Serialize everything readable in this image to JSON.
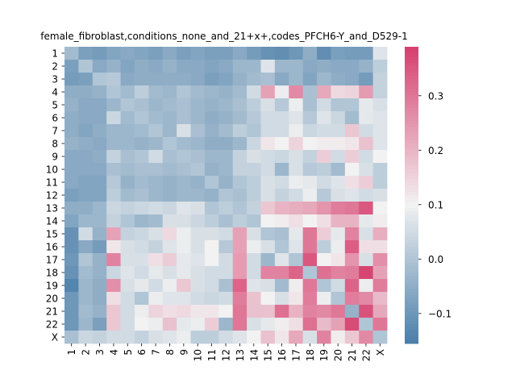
{
  "chart_data": {
    "type": "heatmap",
    "title": "female_fibroblast,conditions_none_and_21+x+,codes_PFCH6-Y_and_D529-1",
    "xlabel": "",
    "ylabel": "",
    "row_labels": [
      "1",
      "2",
      "3",
      "4",
      "5",
      "6",
      "7",
      "8",
      "9",
      "10",
      "11",
      "12",
      "13",
      "14",
      "15",
      "16",
      "17",
      "18",
      "19",
      "20",
      "21",
      "22",
      "X"
    ],
    "col_labels": [
      "1",
      "2",
      "3",
      "4",
      "5",
      "6",
      "7",
      "8",
      "9",
      "10",
      "11",
      "12",
      "13",
      "14",
      "15",
      "16",
      "17",
      "18",
      "19",
      "20",
      "21",
      "22",
      "X"
    ],
    "colorbar": {
      "vmin": -0.155,
      "vmax": 0.39,
      "ticks": [
        -0.1,
        0.0,
        0.1,
        0.2,
        0.3
      ],
      "tick_labels": [
        "−0.1",
        "0.0",
        "0.1",
        "0.2",
        "0.3"
      ],
      "colors": {
        "low": "#4a7ea8",
        "mid": "#f2f2f2",
        "high": "#d63f6e"
      }
    },
    "values": [
      [
        -0.02,
        -0.08,
        -0.09,
        -0.07,
        -0.06,
        -0.07,
        -0.08,
        -0.06,
        -0.08,
        -0.07,
        -0.08,
        -0.08,
        -0.06,
        -0.09,
        -0.11,
        -0.12,
        -0.1,
        -0.05,
        -0.12,
        -0.08,
        -0.09,
        -0.09,
        0.07
      ],
      [
        -0.08,
        0.0,
        -0.06,
        -0.04,
        -0.07,
        -0.05,
        -0.06,
        -0.04,
        -0.06,
        -0.06,
        -0.07,
        -0.06,
        -0.03,
        -0.03,
        0.07,
        -0.03,
        -0.03,
        -0.06,
        -0.05,
        -0.06,
        -0.06,
        -0.04,
        0.02
      ],
      [
        -0.09,
        -0.08,
        0.0,
        0.01,
        -0.06,
        -0.05,
        -0.05,
        -0.05,
        -0.05,
        -0.06,
        -0.08,
        -0.07,
        -0.04,
        -0.02,
        -0.01,
        -0.06,
        -0.03,
        -0.07,
        -0.03,
        -0.05,
        -0.06,
        -0.09,
        0.03
      ],
      [
        -0.05,
        -0.05,
        -0.04,
        0.0,
        -0.02,
        0.02,
        -0.02,
        -0.03,
        0.0,
        -0.02,
        -0.03,
        -0.04,
        -0.02,
        0.05,
        0.23,
        0.09,
        0.27,
        -0.01,
        0.22,
        0.14,
        0.15,
        0.24,
        0.03
      ],
      [
        -0.04,
        -0.06,
        -0.06,
        -0.03,
        0.0,
        -0.01,
        -0.03,
        -0.02,
        -0.01,
        -0.03,
        -0.04,
        -0.03,
        -0.01,
        0.02,
        0.06,
        0.01,
        0.09,
        -0.01,
        0.05,
        0.0,
        0.0,
        0.08,
        0.06
      ],
      [
        -0.05,
        -0.06,
        -0.06,
        0.04,
        -0.02,
        0.0,
        -0.02,
        -0.03,
        -0.01,
        -0.03,
        -0.05,
        -0.04,
        -0.02,
        0.01,
        0.05,
        0.05,
        0.07,
        0.01,
        0.07,
        0.04,
        -0.02,
        0.08,
        0.07
      ],
      [
        -0.05,
        -0.07,
        -0.05,
        -0.03,
        -0.03,
        -0.02,
        0.0,
        -0.03,
        0.06,
        -0.01,
        -0.04,
        -0.02,
        0.02,
        0.0,
        0.05,
        0.05,
        0.09,
        0.04,
        0.05,
        0.05,
        0.17,
        0.05,
        0.07
      ],
      [
        -0.04,
        -0.05,
        -0.06,
        -0.03,
        -0.03,
        -0.04,
        -0.03,
        0.0,
        -0.02,
        -0.03,
        -0.05,
        -0.05,
        -0.03,
        0.04,
        0.12,
        0.1,
        0.15,
        0.1,
        0.11,
        0.11,
        0.12,
        0.18,
        0.07
      ],
      [
        -0.06,
        -0.06,
        -0.05,
        0.03,
        -0.01,
        0.0,
        0.05,
        -0.01,
        0.0,
        -0.01,
        -0.03,
        -0.03,
        0.03,
        0.06,
        0.05,
        0.04,
        0.06,
        0.03,
        0.16,
        0.05,
        0.16,
        0.05,
        0.1
      ],
      [
        -0.06,
        -0.06,
        -0.06,
        -0.01,
        -0.02,
        -0.01,
        -0.01,
        -0.02,
        -0.01,
        0.0,
        -0.04,
        -0.03,
        0.03,
        0.03,
        0.05,
        -0.03,
        0.06,
        0.01,
        0.02,
        -0.02,
        0.1,
        0.06,
        0.02
      ],
      [
        -0.06,
        -0.07,
        -0.07,
        0.01,
        -0.04,
        -0.02,
        -0.03,
        -0.04,
        -0.03,
        -0.04,
        0.0,
        -0.04,
        0.0,
        0.02,
        0.06,
        0.05,
        0.09,
        0.08,
        0.05,
        0.07,
        0.13,
        0.16,
        0.02
      ],
      [
        -0.08,
        -0.07,
        -0.07,
        0.02,
        -0.02,
        -0.01,
        -0.03,
        -0.04,
        -0.03,
        -0.03,
        -0.04,
        0.0,
        -0.01,
        0.02,
        0.06,
        0.03,
        0.05,
        0.09,
        0.01,
        0.06,
        0.07,
        0.05,
        0.06
      ],
      [
        -0.05,
        -0.05,
        -0.03,
        0.04,
        0.03,
        0.04,
        0.05,
        0.04,
        0.07,
        0.06,
        0.0,
        0.02,
        0.0,
        0.03,
        0.17,
        0.2,
        0.21,
        0.22,
        0.25,
        0.29,
        0.3,
        0.35,
        0.1
      ],
      [
        -0.07,
        -0.03,
        -0.03,
        0.03,
        0.0,
        -0.03,
        -0.02,
        0.06,
        0.06,
        0.04,
        0.02,
        -0.01,
        0.02,
        0.0,
        0.1,
        0.11,
        0.13,
        0.1,
        0.13,
        0.2,
        0.2,
        0.08,
        0.11
      ],
      [
        -0.11,
        0.05,
        -0.04,
        0.23,
        0.03,
        0.04,
        0.06,
        0.14,
        0.09,
        0.06,
        0.06,
        0.05,
        0.23,
        0.06,
        0.0,
        -0.01,
        0.08,
        0.3,
        0.16,
        0.08,
        0.28,
        0.06,
        0.21
      ],
      [
        -0.11,
        -0.06,
        -0.09,
        0.12,
        0.06,
        0.05,
        0.03,
        0.07,
        0.09,
        0.06,
        0.1,
        0.01,
        0.23,
        0.09,
        0.06,
        0.0,
        0.07,
        0.3,
        0.02,
        0.09,
        0.34,
        0.13,
        0.13
      ],
      [
        -0.1,
        0.0,
        -0.04,
        0.28,
        0.06,
        0.06,
        0.13,
        0.16,
        0.08,
        0.07,
        0.1,
        0.05,
        0.24,
        0.05,
        -0.03,
        0.07,
        0.0,
        0.35,
        0.1,
        0.12,
        0.25,
        0.06,
        0.26
      ],
      [
        -0.11,
        -0.02,
        -0.04,
        0.04,
        0.07,
        0.05,
        0.08,
        0.06,
        0.08,
        0.06,
        0.05,
        0.05,
        0.24,
        0.05,
        0.28,
        0.28,
        0.33,
        0.0,
        0.31,
        0.28,
        0.29,
        0.38,
        0.23
      ],
      [
        -0.14,
        -0.03,
        -0.05,
        0.26,
        0.06,
        0.08,
        0.05,
        0.09,
        0.17,
        0.06,
        0.05,
        -0.01,
        0.33,
        0.07,
        0.06,
        -0.02,
        0.11,
        0.3,
        0.0,
        0.05,
        0.33,
        0.09,
        0.29
      ],
      [
        -0.1,
        -0.03,
        -0.05,
        0.13,
        0.05,
        0.0,
        0.09,
        0.07,
        0.07,
        0.05,
        0.04,
        0.05,
        0.29,
        0.18,
        0.1,
        0.06,
        0.12,
        0.29,
        0.09,
        0.0,
        0.29,
        0.27,
        0.19
      ],
      [
        -0.1,
        -0.02,
        -0.04,
        0.17,
        0.05,
        0.09,
        0.15,
        0.13,
        0.14,
        0.12,
        0.12,
        0.1,
        0.3,
        0.18,
        0.18,
        0.31,
        0.2,
        0.28,
        0.27,
        0.3,
        -0.04,
        0.36,
        0.22
      ],
      [
        -0.1,
        -0.03,
        -0.08,
        0.17,
        0.05,
        0.1,
        0.09,
        0.18,
        0.08,
        0.09,
        0.16,
        -0.03,
        0.3,
        0.06,
        0.08,
        0.11,
        0.13,
        0.31,
        0.19,
        0.23,
        0.37,
        0.0,
        0.3
      ],
      [
        -0.01,
        0.04,
        0.03,
        0.05,
        0.05,
        0.03,
        0.06,
        0.07,
        0.09,
        0.02,
        0.02,
        0.05,
        0.07,
        0.1,
        0.18,
        0.12,
        0.22,
        0.06,
        0.28,
        0.11,
        0.17,
        0.27,
        0.0
      ]
    ]
  }
}
